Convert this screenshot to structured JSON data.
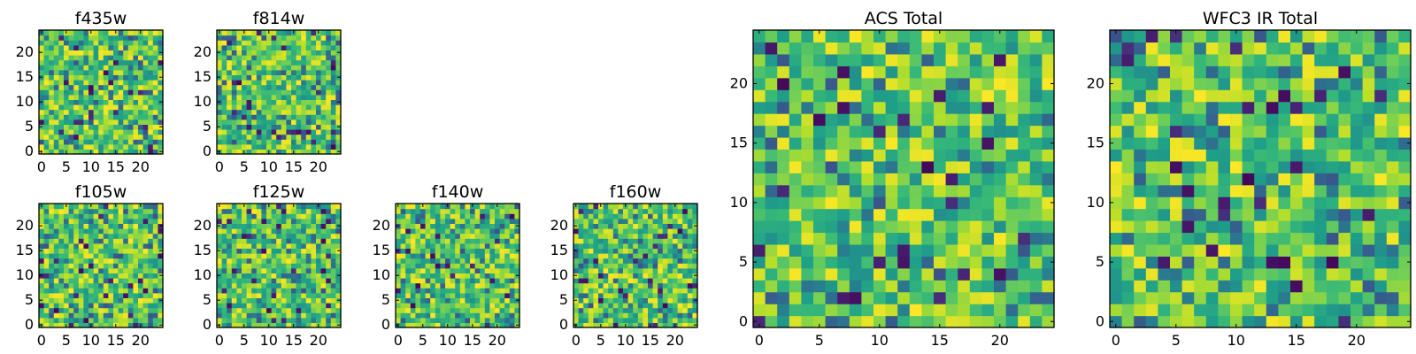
{
  "chart_data": [
    {
      "type": "heatmap",
      "title": "f435w",
      "grid_size": 25,
      "xticks": [
        "0",
        "5",
        "10",
        "15",
        "20"
      ],
      "yticks": [
        "0",
        "5",
        "10",
        "15",
        "20"
      ],
      "colormap": "viridis",
      "xlim": [
        -0.5,
        24.5
      ],
      "ylim": [
        -0.5,
        24.5
      ]
    },
    {
      "type": "heatmap",
      "title": "f814w",
      "grid_size": 25,
      "xticks": [
        "0",
        "5",
        "10",
        "15",
        "20"
      ],
      "yticks": [
        "0",
        "5",
        "10",
        "15",
        "20"
      ],
      "colormap": "viridis",
      "xlim": [
        -0.5,
        24.5
      ],
      "ylim": [
        -0.5,
        24.5
      ]
    },
    {
      "type": "heatmap",
      "title": "f105w",
      "grid_size": 25,
      "xticks": [
        "0",
        "5",
        "10",
        "15",
        "20"
      ],
      "yticks": [
        "0",
        "5",
        "10",
        "15",
        "20"
      ],
      "colormap": "viridis",
      "xlim": [
        -0.5,
        24.5
      ],
      "ylim": [
        -0.5,
        24.5
      ]
    },
    {
      "type": "heatmap",
      "title": "f125w",
      "grid_size": 25,
      "xticks": [
        "0",
        "5",
        "10",
        "15",
        "20"
      ],
      "yticks": [
        "0",
        "5",
        "10",
        "15",
        "20"
      ],
      "colormap": "viridis",
      "xlim": [
        -0.5,
        24.5
      ],
      "ylim": [
        -0.5,
        24.5
      ]
    },
    {
      "type": "heatmap",
      "title": "f140w",
      "grid_size": 25,
      "xticks": [
        "0",
        "5",
        "10",
        "15",
        "20"
      ],
      "yticks": [
        "0",
        "5",
        "10",
        "15",
        "20"
      ],
      "colormap": "viridis",
      "xlim": [
        -0.5,
        24.5
      ],
      "ylim": [
        -0.5,
        24.5
      ]
    },
    {
      "type": "heatmap",
      "title": "f160w",
      "grid_size": 25,
      "xticks": [
        "0",
        "5",
        "10",
        "15",
        "20"
      ],
      "yticks": [
        "0",
        "5",
        "10",
        "15",
        "20"
      ],
      "colormap": "viridis",
      "xlim": [
        -0.5,
        24.5
      ],
      "ylim": [
        -0.5,
        24.5
      ]
    },
    {
      "type": "heatmap",
      "title": "ACS Total",
      "grid_size": 25,
      "xticks": [
        "0",
        "5",
        "10",
        "15",
        "20"
      ],
      "yticks": [
        "0",
        "5",
        "10",
        "15",
        "20"
      ],
      "colormap": "viridis",
      "xlim": [
        -0.5,
        24.5
      ],
      "ylim": [
        -0.5,
        24.5
      ]
    },
    {
      "type": "heatmap",
      "title": "WFC3 IR Total",
      "grid_size": 25,
      "xticks": [
        "0",
        "5",
        "10",
        "15",
        "20"
      ],
      "yticks": [
        "0",
        "5",
        "10",
        "15",
        "20"
      ],
      "colormap": "viridis",
      "xlim": [
        -0.5,
        24.5
      ],
      "ylim": [
        -0.5,
        24.5
      ]
    }
  ]
}
